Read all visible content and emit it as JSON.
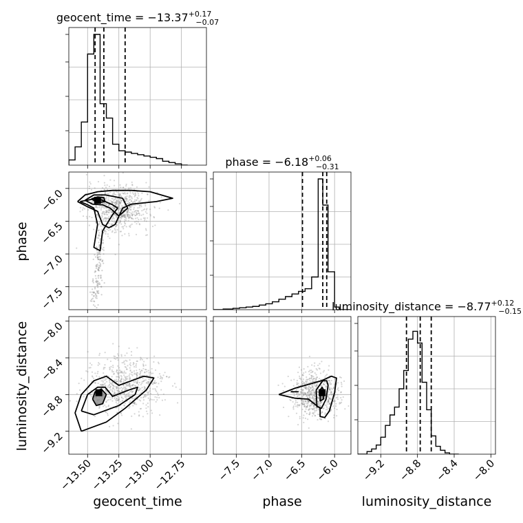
{
  "chart_data": {
    "type": "scatter",
    "subtype": "corner-plot",
    "parameters": [
      "geocent_time",
      "phase",
      "luminosity_distance"
    ],
    "titles": [
      {
        "param": "geocent_time",
        "median": "−13.37",
        "plus": "+0.17",
        "minus": "−0.07"
      },
      {
        "param": "phase",
        "median": "−6.18",
        "plus": "+0.06",
        "minus": "−0.31"
      },
      {
        "param": "luminosity_distance",
        "median": "−8.77",
        "plus": "+0.12",
        "minus": "−0.15"
      }
    ],
    "title_prefix": [
      "geocent_time = ",
      "phase = ",
      "luminosity_distance = "
    ],
    "axis_labels": {
      "x": [
        "geocent_time",
        "phase",
        "luminosity_distance"
      ],
      "y": [
        "phase",
        "luminosity_distance"
      ]
    },
    "ranges": {
      "geocent_time": [
        -13.65,
        -12.55
      ],
      "phase": [
        -7.85,
        -5.75
      ],
      "luminosity_distance": [
        -9.45,
        -7.95
      ]
    },
    "ticks": {
      "geocent_time": [
        -13.5,
        -13.25,
        -13.0,
        -12.75
      ],
      "phase": [
        -7.5,
        -7.0,
        -6.5,
        -6.0
      ],
      "luminosity_distance": [
        -9.2,
        -8.8,
        -8.4,
        -8.0
      ]
    },
    "tick_labels": {
      "geocent_time": [
        "−13.50",
        "−13.25",
        "−13.00",
        "−12.75"
      ],
      "phase_x": [
        "−7.5",
        "−7.0",
        "−6.5",
        "−6.0"
      ],
      "phase_y": [
        "−6.0",
        "−6.5",
        "−7.0",
        "−7.5"
      ],
      "luminosity_distance_x": [
        "−9.2",
        "−8.8",
        "−8.4",
        "−8.0"
      ],
      "luminosity_distance_y": [
        "−8.0",
        "−8.4",
        "−8.8",
        "−9.2"
      ]
    },
    "quantiles": {
      "geocent_time": [
        -13.44,
        -13.37,
        -13.2
      ],
      "phase": [
        -6.49,
        -6.18,
        -6.12
      ],
      "luminosity_distance": [
        -8.92,
        -8.77,
        -8.65
      ]
    },
    "histograms": {
      "geocent_time": {
        "edges": [
          -13.65,
          -13.6,
          -13.55,
          -13.5,
          -13.45,
          -13.4,
          -13.35,
          -13.3,
          -13.25,
          -13.2,
          -13.15,
          -13.1,
          -13.05,
          -13.0,
          -12.95,
          -12.9,
          -12.85,
          -12.8,
          -12.75,
          -12.7
        ],
        "counts": [
          0.04,
          0.14,
          0.33,
          0.85,
          1.0,
          0.47,
          0.36,
          0.16,
          0.11,
          0.1,
          0.09,
          0.08,
          0.07,
          0.06,
          0.05,
          0.03,
          0.02,
          0.01,
          0.0
        ]
      },
      "phase": {
        "edges": [
          -7.85,
          -7.7,
          -7.55,
          -7.45,
          -7.35,
          -7.25,
          -7.15,
          -7.05,
          -6.95,
          -6.85,
          -6.75,
          -6.65,
          -6.55,
          -6.45,
          -6.35,
          -6.25,
          -6.18,
          -6.1,
          -6.0,
          -5.93,
          -5.75
        ],
        "counts": [
          0.0,
          0.005,
          0.01,
          0.015,
          0.02,
          0.025,
          0.035,
          0.045,
          0.06,
          0.08,
          0.1,
          0.12,
          0.14,
          0.16,
          0.25,
          1.0,
          0.8,
          0.29,
          0.02,
          0.0
        ]
      },
      "luminosity_distance": {
        "edges": [
          -9.45,
          -9.35,
          -9.3,
          -9.25,
          -9.2,
          -9.15,
          -9.1,
          -9.05,
          -9.0,
          -8.95,
          -8.9,
          -8.85,
          -8.8,
          -8.75,
          -8.7,
          -8.65,
          -8.6,
          -8.55,
          -8.5,
          -8.45,
          -8.4,
          -8.35
        ],
        "counts": [
          0.0,
          0.02,
          0.04,
          0.07,
          0.13,
          0.22,
          0.3,
          0.36,
          0.5,
          0.64,
          0.88,
          0.94,
          0.85,
          0.55,
          0.34,
          0.14,
          0.06,
          0.03,
          0.01,
          0.0,
          0.0
        ]
      }
    },
    "scatter_clouds": [
      {
        "pair": [
          "geocent_time",
          "phase"
        ],
        "center": [
          -13.25,
          -6.3
        ],
        "spread": [
          0.25,
          0.35
        ],
        "count": 700,
        "tail": {
          "from": [
            -13.38,
            -6.6
          ],
          "to": [
            -13.45,
            -7.8
          ]
        }
      },
      {
        "pair": [
          "geocent_time",
          "luminosity_distance"
        ],
        "center": [
          -13.2,
          -8.7
        ],
        "spread": [
          0.3,
          0.3
        ],
        "count": 700
      },
      {
        "pair": [
          "phase",
          "luminosity_distance"
        ],
        "center": [
          -6.3,
          -8.8
        ],
        "spread": [
          0.35,
          0.25
        ],
        "count": 700
      }
    ],
    "contours": [
      {
        "pair": [
          "geocent_time",
          "phase"
        ],
        "levels": [
          [
            [
              -13.58,
              -6.2
            ],
            [
              -13.52,
              -6.1
            ],
            [
              -13.42,
              -6.05
            ],
            [
              -13.3,
              -6.03
            ],
            [
              -13.15,
              -6.03
            ],
            [
              -13.0,
              -6.05
            ],
            [
              -12.82,
              -6.15
            ],
            [
              -12.95,
              -6.2
            ],
            [
              -13.15,
              -6.24
            ],
            [
              -13.22,
              -6.3
            ],
            [
              -13.28,
              -6.55
            ],
            [
              -13.33,
              -6.6
            ],
            [
              -13.38,
              -6.55
            ],
            [
              -13.42,
              -6.35
            ],
            [
              -13.5,
              -6.28
            ],
            [
              -13.58,
              -6.2
            ]
          ],
          [
            [
              -13.52,
              -6.18
            ],
            [
              -13.45,
              -6.1
            ],
            [
              -13.36,
              -6.1
            ],
            [
              -13.3,
              -6.12
            ],
            [
              -13.22,
              -6.15
            ],
            [
              -13.18,
              -6.3
            ],
            [
              -13.25,
              -6.42
            ],
            [
              -13.32,
              -6.3
            ],
            [
              -13.38,
              -6.25
            ],
            [
              -13.46,
              -6.24
            ],
            [
              -13.52,
              -6.18
            ]
          ],
          [
            [
              -13.47,
              -6.16
            ],
            [
              -13.42,
              -6.13
            ],
            [
              -13.37,
              -6.14
            ],
            [
              -13.36,
              -6.2
            ],
            [
              -13.42,
              -6.22
            ],
            [
              -13.47,
              -6.16
            ]
          ],
          [
            [
              -13.56,
              -6.2
            ],
            [
              -13.5,
              -6.25
            ],
            [
              -13.45,
              -6.3
            ],
            [
              -13.42,
              -6.55
            ],
            [
              -13.45,
              -6.9
            ],
            [
              -13.4,
              -6.95
            ],
            [
              -13.38,
              -6.65
            ],
            [
              -13.3,
              -6.4
            ],
            [
              -13.26,
              -6.3
            ],
            [
              -13.3,
              -6.25
            ],
            [
              -13.42,
              -6.15
            ],
            [
              -13.56,
              -6.2
            ]
          ]
        ]
      },
      {
        "pair": [
          "geocent_time",
          "luminosity_distance"
        ],
        "levels": [
          [
            [
              -13.55,
              -9.2
            ],
            [
              -13.6,
              -9.0
            ],
            [
              -13.55,
              -8.8
            ],
            [
              -13.45,
              -8.65
            ],
            [
              -13.35,
              -8.6
            ],
            [
              -13.3,
              -8.65
            ],
            [
              -13.25,
              -8.7
            ],
            [
              -13.15,
              -8.65
            ],
            [
              -13.05,
              -8.6
            ],
            [
              -12.97,
              -8.62
            ],
            [
              -13.03,
              -8.75
            ],
            [
              -13.2,
              -8.95
            ],
            [
              -13.35,
              -9.1
            ],
            [
              -13.55,
              -9.2
            ]
          ],
          [
            [
              -13.55,
              -8.98
            ],
            [
              -13.5,
              -8.8
            ],
            [
              -13.42,
              -8.72
            ],
            [
              -13.36,
              -8.72
            ],
            [
              -13.3,
              -8.82
            ],
            [
              -13.17,
              -8.75
            ],
            [
              -13.1,
              -8.72
            ],
            [
              -13.12,
              -8.8
            ],
            [
              -13.25,
              -8.92
            ],
            [
              -13.45,
              -9.02
            ],
            [
              -13.55,
              -8.98
            ]
          ],
          [
            [
              -13.46,
              -8.85
            ],
            [
              -13.44,
              -8.77
            ],
            [
              -13.39,
              -8.74
            ],
            [
              -13.35,
              -8.8
            ],
            [
              -13.38,
              -8.9
            ],
            [
              -13.43,
              -8.92
            ],
            [
              -13.46,
              -8.85
            ]
          ]
        ]
      },
      {
        "pair": [
          "phase",
          "luminosity_distance"
        ],
        "levels": [
          [
            [
              -6.85,
              -8.8
            ],
            [
              -6.6,
              -8.73
            ],
            [
              -6.35,
              -8.68
            ],
            [
              -6.2,
              -8.65
            ],
            [
              -6.05,
              -8.6
            ],
            [
              -5.97,
              -8.62
            ],
            [
              -6.0,
              -8.78
            ],
            [
              -6.08,
              -8.98
            ],
            [
              -6.15,
              -9.05
            ],
            [
              -6.22,
              -9.04
            ],
            [
              -6.22,
              -8.95
            ],
            [
              -6.4,
              -8.85
            ],
            [
              -6.6,
              -8.84
            ],
            [
              -6.85,
              -8.8
            ]
          ],
          [
            [
              -6.28,
              -8.75
            ],
            [
              -6.18,
              -8.65
            ],
            [
              -6.12,
              -8.65
            ],
            [
              -6.1,
              -8.7
            ],
            [
              -6.13,
              -8.85
            ],
            [
              -6.2,
              -8.95
            ],
            [
              -6.27,
              -8.93
            ],
            [
              -6.28,
              -8.75
            ]
          ],
          [
            [
              -6.22,
              -8.75
            ],
            [
              -6.19,
              -8.72
            ],
            [
              -6.16,
              -8.76
            ],
            [
              -6.17,
              -8.85
            ],
            [
              -6.22,
              -8.87
            ],
            [
              -6.22,
              -8.75
            ]
          ],
          [
            [
              -6.67,
              -8.77
            ],
            [
              -6.55,
              -8.77
            ]
          ]
        ]
      }
    ],
    "dense_cells": [
      {
        "pair": [
          "geocent_time",
          "phase"
        ],
        "point": [
          -13.42,
          -6.18
        ],
        "shade": "#000000"
      },
      {
        "pair": [
          "geocent_time",
          "luminosity_distance"
        ],
        "point": [
          -13.41,
          -8.78
        ],
        "shade": "#000000"
      },
      {
        "pair": [
          "phase",
          "luminosity_distance"
        ],
        "point": [
          -6.19,
          -8.78
        ],
        "shade": "#000000"
      }
    ],
    "grid": true,
    "colors": {
      "line": "#000000",
      "scatter": "#888888",
      "grid": "#b0b0b0"
    }
  }
}
